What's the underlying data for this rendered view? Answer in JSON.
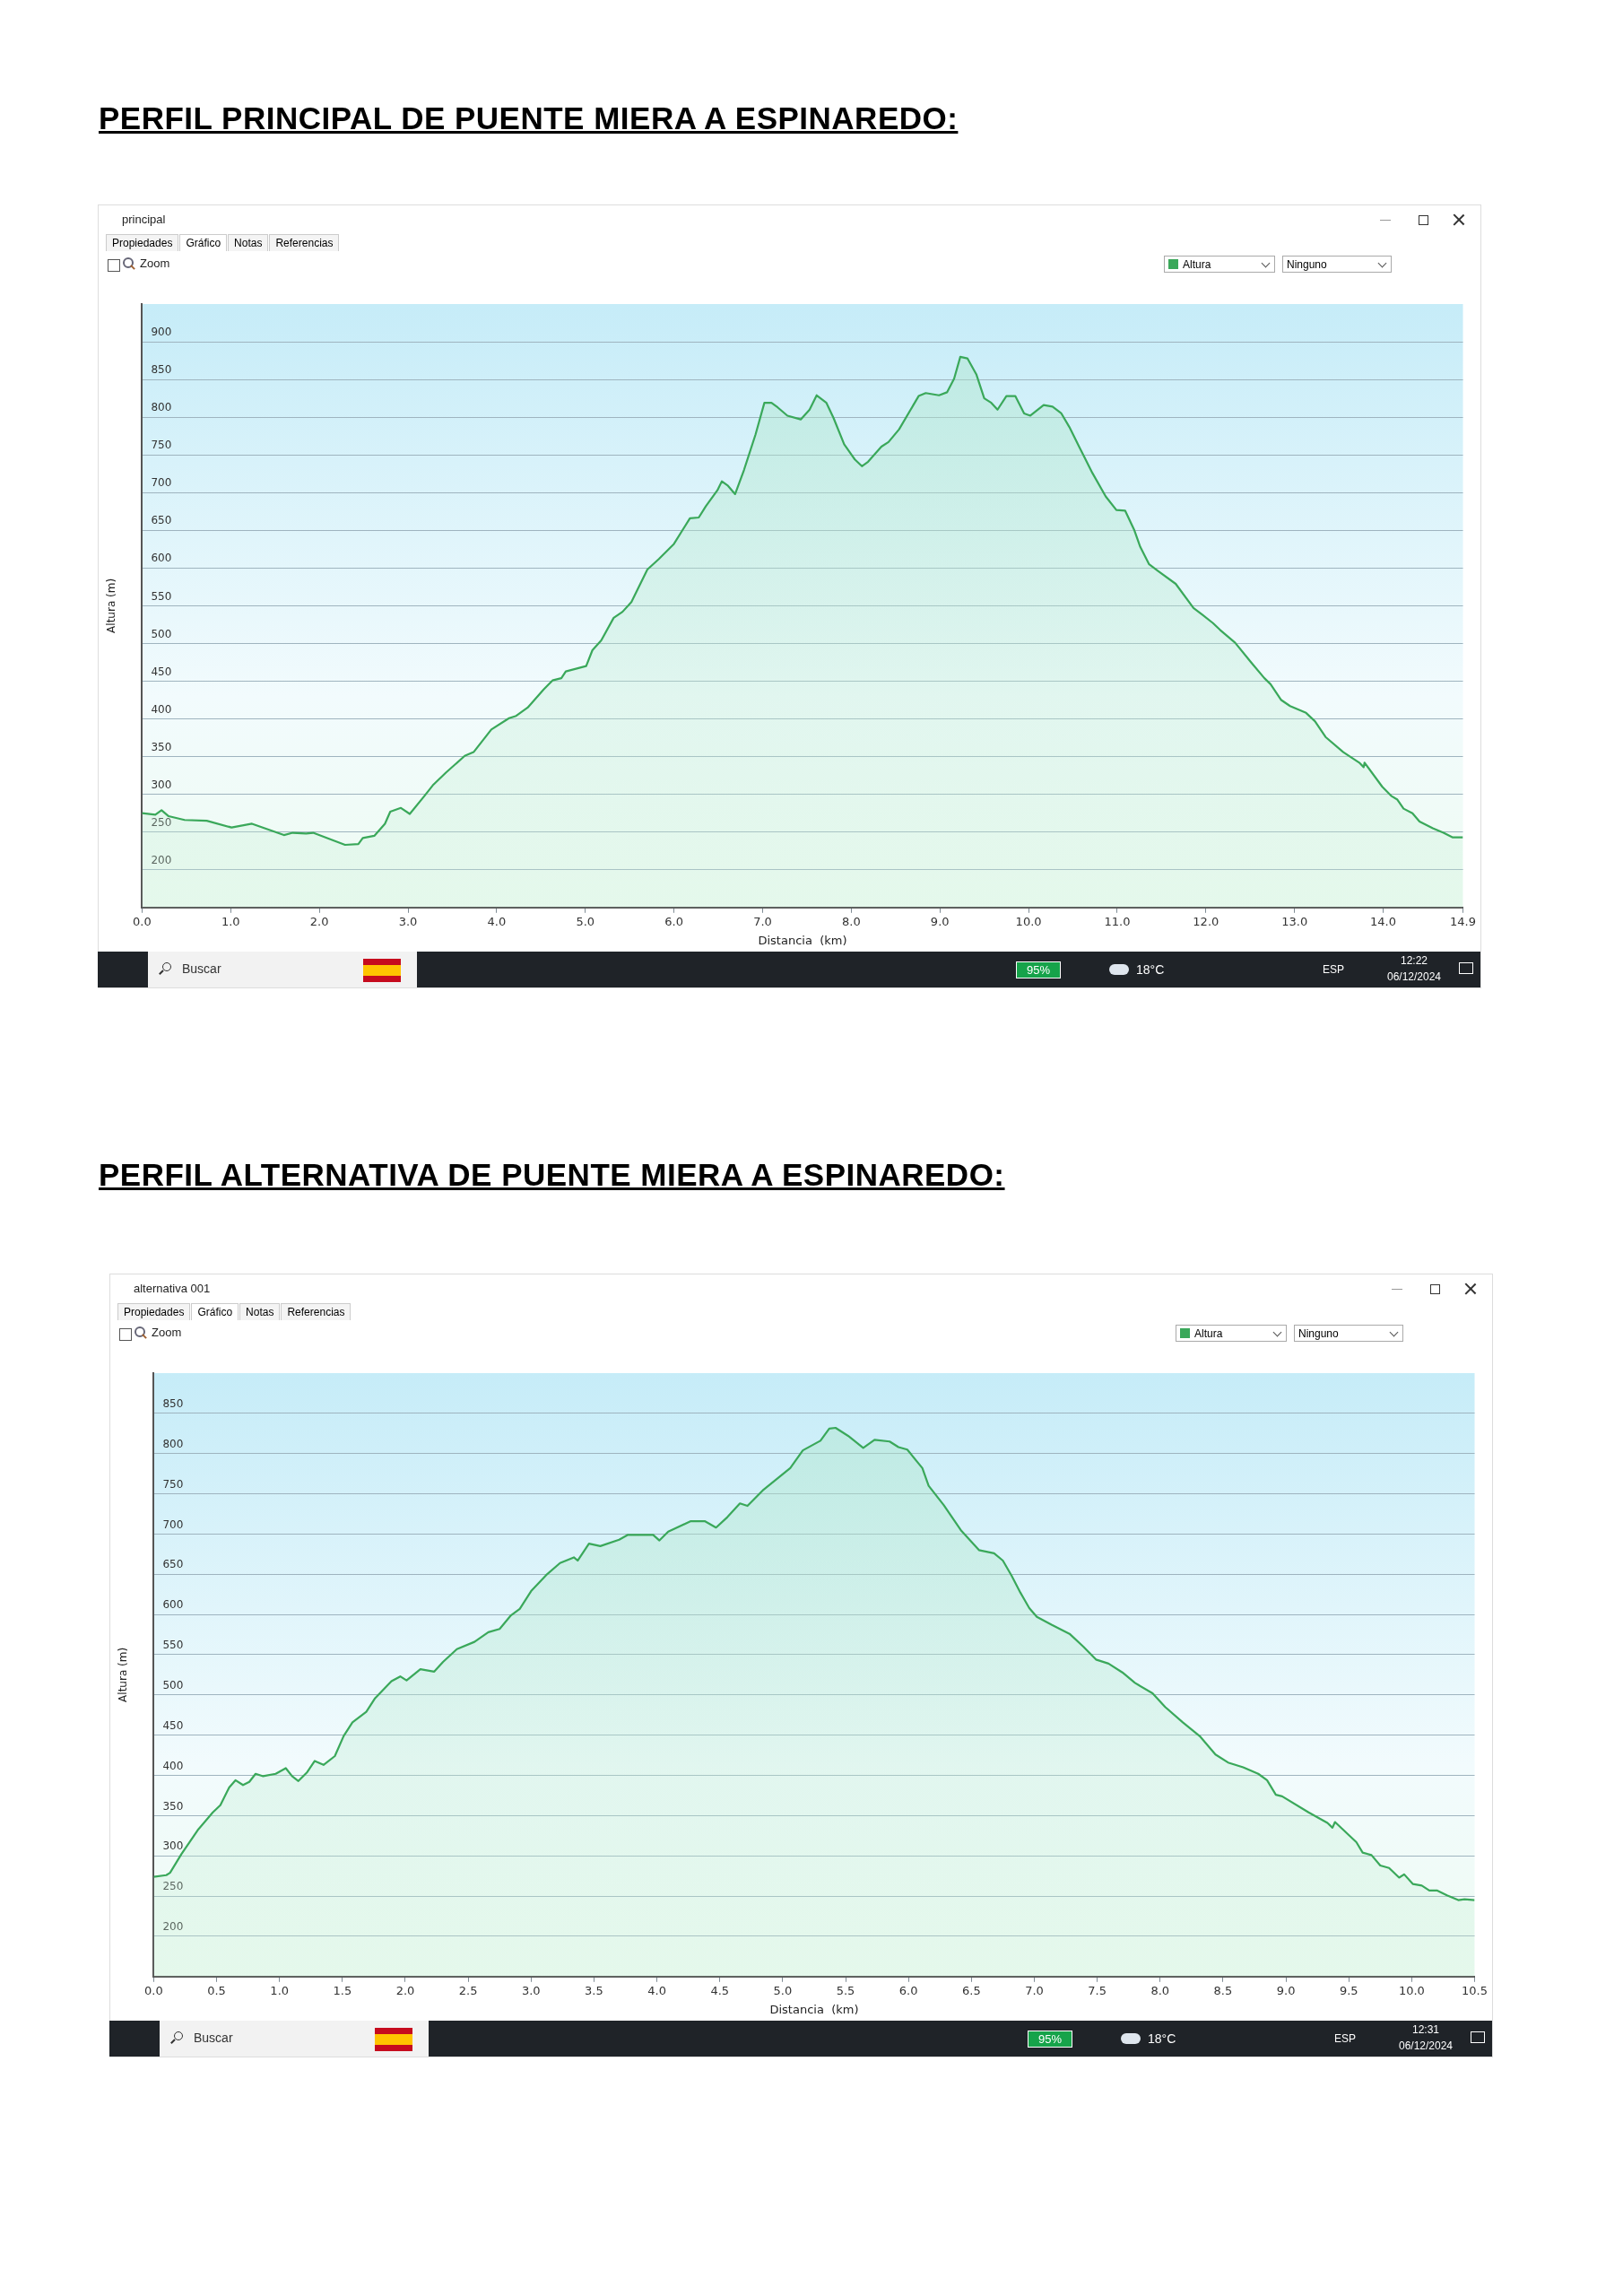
{
  "chart_data": [
    {
      "type": "area",
      "title": "PERFIL PRINCIPAL DE PUENTE MIERA A ESPINAREDO:",
      "xlabel": "Distancia  (km)",
      "ylabel": "Altura (m)",
      "color": "#3aa85a",
      "grid": "y",
      "marker": "none",
      "line_style": "solid",
      "annotations": [
        "principal",
        "Propiedades",
        "Gráfico",
        "Notas",
        "Referencias",
        "Zoom",
        "Altura",
        "Ninguno",
        "Buscar",
        "95%",
        "18°C",
        "ESP",
        "12:22",
        "06/12/2024"
      ],
      "xlim": [
        0,
        14.9
      ],
      "ylim": [
        150,
        950
      ],
      "xticks": [
        {
          "value": 0,
          "label": "0.0"
        },
        {
          "value": 1,
          "label": "1.0"
        },
        {
          "value": 2,
          "label": "2.0"
        },
        {
          "value": 3,
          "label": "3.0"
        },
        {
          "value": 4,
          "label": "4.0"
        },
        {
          "value": 5,
          "label": "5.0"
        },
        {
          "value": 6,
          "label": "6.0"
        },
        {
          "value": 7,
          "label": "7.0"
        },
        {
          "value": 8,
          "label": "8.0"
        },
        {
          "value": 9,
          "label": "9.0"
        },
        {
          "value": 10,
          "label": "10.0"
        },
        {
          "value": 11,
          "label": "11.0"
        },
        {
          "value": 12,
          "label": "12.0"
        },
        {
          "value": 13,
          "label": "13.0"
        },
        {
          "value": 14,
          "label": "14.0"
        },
        {
          "value": 14.9,
          "label": "14.9"
        }
      ],
      "yticks": [
        200,
        250,
        300,
        350,
        400,
        450,
        500,
        550,
        600,
        650,
        700,
        750,
        800,
        850,
        900
      ],
      "x": [
        0,
        0.15,
        0.22,
        0.3,
        0.48,
        0.73,
        1.01,
        1.24,
        1.6,
        1.7,
        1.85,
        1.93,
        2.29,
        2.44,
        2.49,
        2.62,
        2.74,
        2.8,
        2.92,
        3.02,
        3.18,
        3.28,
        3.43,
        3.64,
        3.74,
        3.94,
        4.14,
        4.22,
        4.35,
        4.53,
        4.63,
        4.73,
        4.78,
        5.01,
        5.08,
        5.18,
        5.32,
        5.42,
        5.52,
        5.7,
        5.83,
        6.0,
        6.18,
        6.28,
        6.36,
        6.49,
        6.54,
        6.61,
        6.69,
        6.79,
        6.92,
        7.02,
        7.1,
        7.17,
        7.28,
        7.43,
        7.53,
        7.61,
        7.72,
        7.8,
        7.92,
        8.04,
        8.12,
        8.19,
        8.34,
        8.42,
        8.54,
        8.76,
        8.84,
        8.99,
        9.08,
        9.16,
        9.23,
        9.31,
        9.41,
        9.5,
        9.58,
        9.65,
        9.75,
        9.85,
        9.95,
        10.02,
        10.17,
        10.27,
        10.37,
        10.46,
        10.57,
        10.72,
        10.87,
        10.99,
        11.09,
        11.19,
        11.26,
        11.36,
        11.46,
        11.66,
        11.86,
        11.96,
        12.08,
        12.16,
        12.33,
        12.51,
        12.66,
        12.73,
        12.85,
        12.95,
        13.13,
        13.23,
        13.35,
        13.55,
        13.73,
        13.78,
        13.79,
        13.99,
        14.09,
        14.16,
        14.23,
        14.33,
        14.41,
        14.56,
        14.68,
        14.78,
        14.9
      ],
      "values": [
        275,
        273,
        279,
        271,
        266,
        265,
        256,
        261,
        246,
        249,
        248,
        249,
        233,
        234,
        242,
        245,
        261,
        277,
        282,
        274,
        297,
        312,
        329,
        351,
        356,
        386,
        401,
        404,
        415,
        439,
        451,
        454,
        463,
        470,
        491,
        504,
        534,
        542,
        555,
        598,
        612,
        632,
        666,
        667,
        682,
        703,
        715,
        709,
        698,
        730,
        777,
        819,
        819,
        813,
        802,
        797,
        810,
        829,
        819,
        799,
        764,
        744,
        735,
        741,
        761,
        767,
        784,
        828,
        832,
        829,
        833,
        851,
        880,
        878,
        857,
        825,
        819,
        810,
        828,
        828,
        805,
        802,
        816,
        814,
        805,
        787,
        761,
        726,
        695,
        677,
        676,
        651,
        628,
        605,
        596,
        579,
        547,
        538,
        527,
        518,
        501,
        475,
        454,
        446,
        425,
        417,
        408,
        397,
        376,
        356,
        342,
        336,
        342,
        310,
        298,
        293,
        281,
        275,
        264,
        255,
        249,
        243,
        243
      ]
    },
    {
      "type": "area",
      "title": "PERFIL ALTERNATIVA DE PUENTE MIERA A ESPINAREDO:",
      "xlabel": "Distancia  (km)",
      "ylabel": "Altura (m)",
      "color": "#3aa85a",
      "grid": "y",
      "marker": "none",
      "line_style": "solid",
      "annotations": [
        "alternativa 001",
        "Propiedades",
        "Gráfico",
        "Notas",
        "Referencias",
        "Zoom",
        "Altura",
        "Ninguno",
        "Buscar",
        "95%",
        "18°C",
        "ESP",
        "12:31",
        "06/12/2024"
      ],
      "xlim": [
        0,
        10.5
      ],
      "ylim": [
        150,
        900
      ],
      "xticks": [
        {
          "value": 0,
          "label": "0.0"
        },
        {
          "value": 0.5,
          "label": "0.5"
        },
        {
          "value": 1,
          "label": "1.0"
        },
        {
          "value": 1.5,
          "label": "1.5"
        },
        {
          "value": 2,
          "label": "2.0"
        },
        {
          "value": 2.5,
          "label": "2.5"
        },
        {
          "value": 3,
          "label": "3.0"
        },
        {
          "value": 3.5,
          "label": "3.5"
        },
        {
          "value": 4,
          "label": "4.0"
        },
        {
          "value": 4.5,
          "label": "4.5"
        },
        {
          "value": 5,
          "label": "5.0"
        },
        {
          "value": 5.5,
          "label": "5.5"
        },
        {
          "value": 6,
          "label": "6.0"
        },
        {
          "value": 6.5,
          "label": "6.5"
        },
        {
          "value": 7,
          "label": "7.0"
        },
        {
          "value": 7.5,
          "label": "7.5"
        },
        {
          "value": 8,
          "label": "8.0"
        },
        {
          "value": 8.5,
          "label": "8.5"
        },
        {
          "value": 9,
          "label": "9.0"
        },
        {
          "value": 9.5,
          "label": "9.5"
        },
        {
          "value": 10,
          "label": "10.0"
        },
        {
          "value": 10.5,
          "label": "10.5"
        }
      ],
      "yticks": [
        200,
        250,
        300,
        350,
        400,
        450,
        500,
        550,
        600,
        650,
        700,
        750,
        800,
        850
      ],
      "x": [
        0,
        0.1,
        0.13,
        0.22,
        0.35,
        0.47,
        0.53,
        0.6,
        0.65,
        0.71,
        0.76,
        0.81,
        0.87,
        0.97,
        1.05,
        1.1,
        1.15,
        1.22,
        1.28,
        1.35,
        1.44,
        1.51,
        1.58,
        1.69,
        1.76,
        1.89,
        1.96,
        2.01,
        2.12,
        2.23,
        2.3,
        2.41,
        2.55,
        2.66,
        2.75,
        2.84,
        2.91,
        3.0,
        3.12,
        3.23,
        3.34,
        3.37,
        3.46,
        3.55,
        3.7,
        3.77,
        3.88,
        3.97,
        4.02,
        4.09,
        4.27,
        4.38,
        4.47,
        4.56,
        4.66,
        4.72,
        4.84,
        4.95,
        5.06,
        5.16,
        5.3,
        5.37,
        5.42,
        5.52,
        5.64,
        5.73,
        5.85,
        5.92,
        5.99,
        6.11,
        6.16,
        6.28,
        6.42,
        6.56,
        6.68,
        6.75,
        6.82,
        6.89,
        6.96,
        7.02,
        7.14,
        7.28,
        7.39,
        7.49,
        7.59,
        7.7,
        7.8,
        7.94,
        8.04,
        8.18,
        8.32,
        8.44,
        8.54,
        8.66,
        8.78,
        8.85,
        8.92,
        8.97,
        9.18,
        9.33,
        9.37,
        9.39,
        9.56,
        9.61,
        9.68,
        9.75,
        9.82,
        9.9,
        9.94,
        10.01,
        10.08,
        10.14,
        10.2,
        10.28,
        10.37,
        10.42,
        10.5
      ],
      "values": [
        274,
        276,
        279,
        302,
        332,
        354,
        363,
        385,
        394,
        388,
        392,
        402,
        399,
        402,
        409,
        399,
        393,
        404,
        418,
        413,
        424,
        449,
        466,
        479,
        496,
        517,
        523,
        518,
        532,
        529,
        541,
        557,
        566,
        578,
        582,
        599,
        607,
        629,
        649,
        664,
        671,
        667,
        688,
        685,
        693,
        699,
        699,
        699,
        692,
        703,
        716,
        716,
        708,
        721,
        738,
        735,
        754,
        768,
        782,
        804,
        816,
        831,
        832,
        822,
        807,
        817,
        815,
        808,
        805,
        782,
        760,
        736,
        704,
        680,
        676,
        667,
        648,
        627,
        608,
        597,
        587,
        576,
        560,
        544,
        539,
        528,
        515,
        502,
        485,
        466,
        448,
        426,
        416,
        410,
        402,
        394,
        376,
        374,
        354,
        341,
        335,
        342,
        317,
        304,
        301,
        288,
        285,
        273,
        277,
        265,
        263,
        257,
        257,
        251,
        245,
        246,
        245
      ]
    }
  ]
}
